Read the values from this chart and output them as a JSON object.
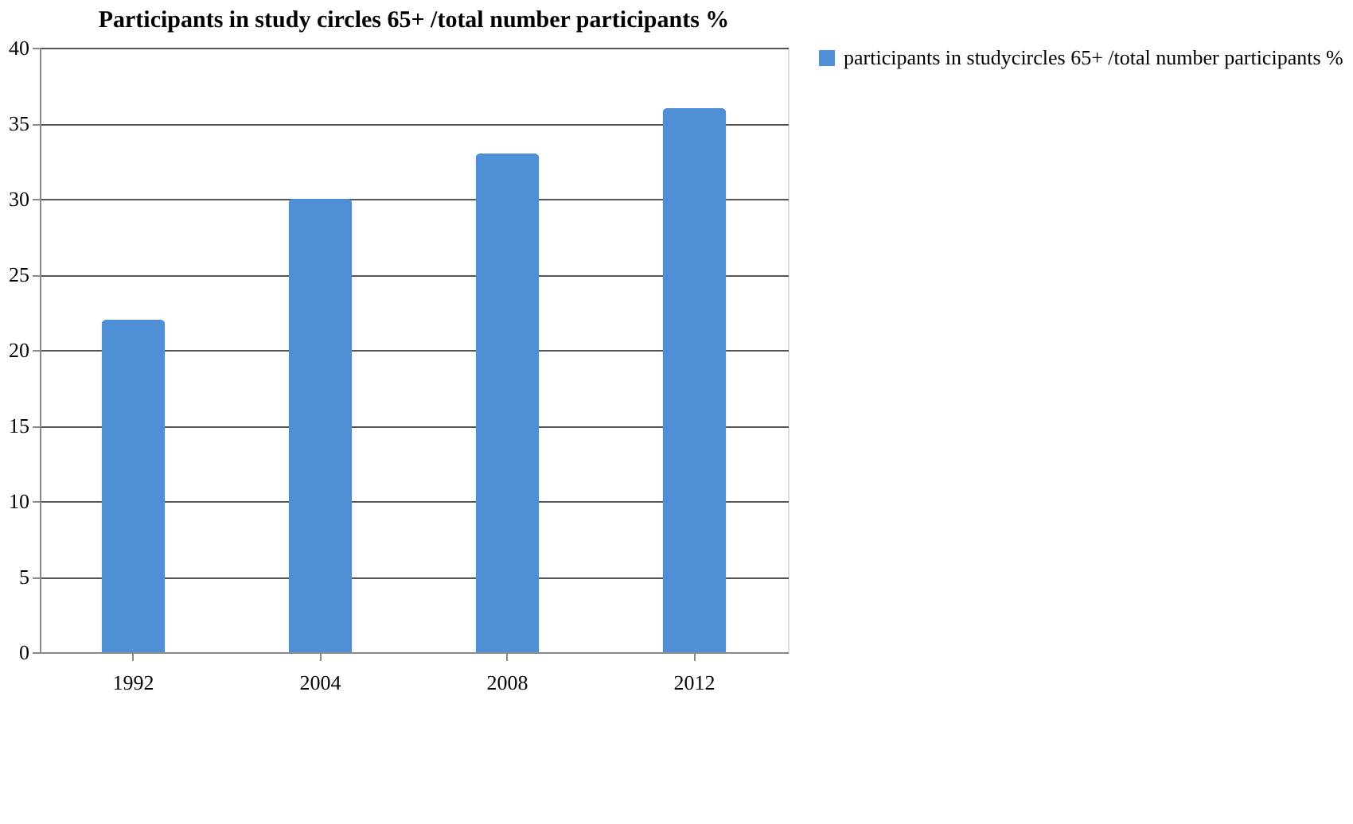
{
  "chart_data": {
    "type": "bar",
    "title": "Participants in study circles 65+ /total number participants %",
    "categories": [
      "1992",
      "2004",
      "2008",
      "2012"
    ],
    "series": [
      {
        "name": "participants in studycircles 65+ /total number participants %",
        "color": "#4f8fd6",
        "values": [
          22,
          30,
          33,
          36
        ]
      }
    ],
    "ylim": [
      0,
      40
    ],
    "yticks": [
      0,
      5,
      10,
      15,
      20,
      25,
      30,
      35,
      40
    ],
    "grid": "y",
    "legend": "right"
  }
}
